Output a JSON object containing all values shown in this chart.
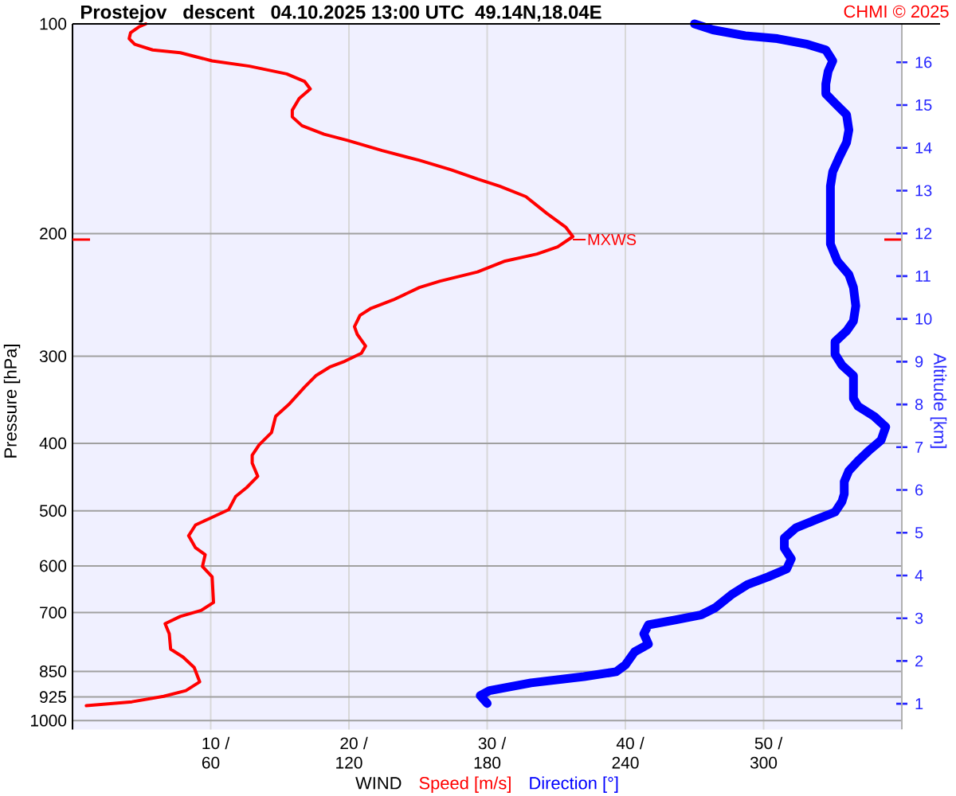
{
  "chart_data": {
    "type": "line",
    "title": "Prostejov   descent   04.10.2025 13:00 UTC  49.14N,18.04E",
    "xlabel": "WIND",
    "ylabel": "Pressure [hPa]",
    "y2label": "Altitude [km]",
    "annotations": [
      "CHMI © 2025",
      {
        "text": "MXWS",
        "x": 36.2,
        "y": 204
      },
      "/",
      "/",
      "/",
      "/",
      "/"
    ],
    "xlim": [
      0,
      60
    ],
    "xticks": [
      10,
      20,
      30,
      40,
      50
    ],
    "x2lim": [
      0,
      360
    ],
    "x2ticks": [
      60,
      120,
      180,
      240,
      300
    ],
    "ylim": [
      1030,
      100
    ],
    "yticks": [
      100,
      200,
      300,
      400,
      500,
      600,
      700,
      850,
      925,
      1000
    ],
    "y2lim": [
      0.4,
      16.9
    ],
    "y2ticks": [
      1,
      2,
      3,
      4,
      5,
      6,
      7,
      8,
      9,
      10,
      11,
      12,
      13,
      14,
      15,
      16
    ],
    "log": "y",
    "grid": true,
    "legend": "bottom",
    "series": [
      {
        "name": "Speed [m/s]",
        "color": "#ff0000",
        "x": [
          5.3,
          4.8,
          4.2,
          4.1,
          4.5,
          5.8,
          7.8,
          10.1,
          12.8,
          15.5,
          16.8,
          17.2,
          16.4,
          15.9,
          15.9,
          16.6,
          18.2,
          19.9,
          22.4,
          25.1,
          27.4,
          29.3,
          30.9,
          32.8,
          34.3,
          35.7,
          36.2,
          35.1,
          33.6,
          31.3,
          29.3,
          26.6,
          25.1,
          23.2,
          21.6,
          20.8,
          20.4,
          20.6,
          21.2,
          20.9,
          19.7,
          18.6,
          17.6,
          16.8,
          15.7,
          14.7,
          14.4,
          13.5,
          13.0,
          13.0,
          13.4,
          12.6,
          11.8,
          11.3,
          9.9,
          8.9,
          8.4,
          8.9,
          9.6,
          9.4,
          10.1,
          10.2,
          9.3,
          7.8,
          6.7,
          7.0,
          7.1,
          8.0,
          8.8,
          9.2,
          8.2,
          6.6,
          4.3,
          2.4,
          1.0
        ],
        "values": [
          100,
          101,
          103,
          105,
          107,
          109,
          110,
          113,
          115,
          118,
          121,
          124,
          128,
          133,
          136,
          140,
          144,
          147,
          152,
          157,
          162,
          167,
          171,
          177,
          187,
          196,
          202,
          209,
          214,
          219,
          227,
          234,
          239,
          249,
          256,
          262,
          272,
          279,
          290,
          297,
          305,
          311,
          320,
          332,
          351,
          366,
          386,
          402,
          416,
          427,
          446,
          463,
          477,
          498,
          513,
          524,
          543,
          565,
          578,
          601,
          622,
          677,
          695,
          709,
          726,
          751,
          790,
          811,
          839,
          880,
          906,
          923,
          940,
          947,
          952
        ]
      },
      {
        "name": "Direction [°]",
        "color": "#0000ff",
        "axis": "x2",
        "x": [
          270,
          278,
          292,
          306,
          319,
          327,
          330,
          328,
          327,
          327,
          331,
          336,
          337,
          336,
          333,
          330,
          329,
          329,
          332,
          337,
          339,
          340,
          339,
          336,
          331,
          331,
          334,
          339,
          339,
          341,
          348,
          353,
          351,
          346,
          341,
          337,
          335,
          335,
          334,
          331,
          322,
          314,
          309,
          309,
          312,
          310,
          302,
          293,
          286,
          279,
          273,
          262,
          250,
          248,
          250,
          244,
          240,
          236,
          222,
          199,
          181,
          177,
          180
        ],
        "values": [
          100,
          102,
          104,
          105,
          107,
          109,
          113,
          117,
          122,
          126,
          130,
          135,
          142,
          148,
          155,
          163,
          171,
          207,
          219,
          229,
          239,
          254,
          267,
          276,
          286,
          298,
          309,
          320,
          345,
          354,
          366,
          379,
          396,
          409,
          424,
          438,
          454,
          473,
          485,
          502,
          516,
          529,
          547,
          566,
          586,
          606,
          622,
          638,
          660,
          689,
          705,
          717,
          729,
          751,
          777,
          797,
          832,
          851,
          865,
          883,
          906,
          921,
          945
        ]
      }
    ]
  }
}
